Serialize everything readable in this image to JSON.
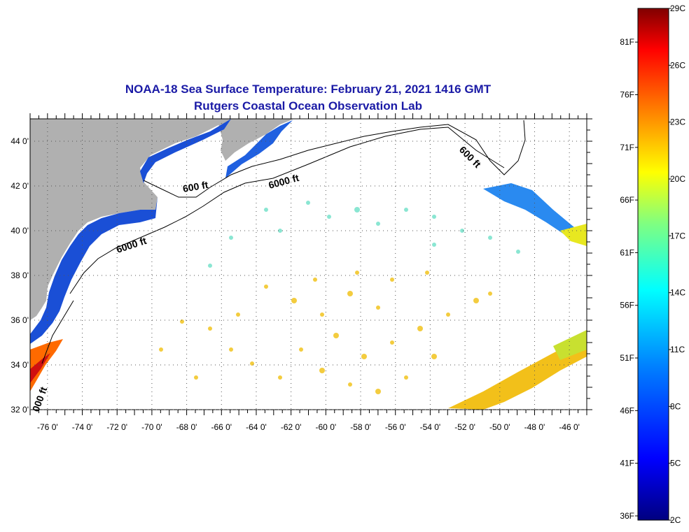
{
  "title": {
    "line1": "NOAA-18 Sea Surface Temperature:  February 21, 2021 1416 GMT",
    "line2": "Rutgers Coastal Ocean Observation Lab"
  },
  "map": {
    "lon_labels": [
      "-76 0'",
      "-74 0'",
      "-72 0'",
      "-70 0'",
      "-68 0'",
      "-66 0'",
      "-64 0'",
      "-62 0'",
      "-60 0'",
      "-58 0'",
      "-56 0'",
      "-54 0'",
      "-52 0'",
      "-50 0'",
      "-48 0'",
      "-46 0'"
    ],
    "lat_labels": [
      "44 0'",
      "42 0'",
      "40 0'",
      "38 0'",
      "36 0'",
      "34 0'",
      "32 0'"
    ],
    "contour_labels": [
      "600 ft",
      "6000 ft",
      "6000 ft",
      "600 ft",
      "000 ft"
    ]
  },
  "colorbar": {
    "celsius": [
      "29C",
      "26C",
      "23C",
      "20C",
      "17C",
      "14C",
      "11C",
      "8C",
      "5C",
      "2C"
    ],
    "fahrenheit": [
      "81F",
      "76F",
      "71F",
      "66F",
      "61F",
      "56F",
      "51F",
      "46F",
      "41F",
      "36F"
    ],
    "colors": [
      "#000080",
      "#0000ff",
      "#0080ff",
      "#00ffff",
      "#80ff80",
      "#ffff00",
      "#ff8000",
      "#ff0000",
      "#800000"
    ]
  }
}
